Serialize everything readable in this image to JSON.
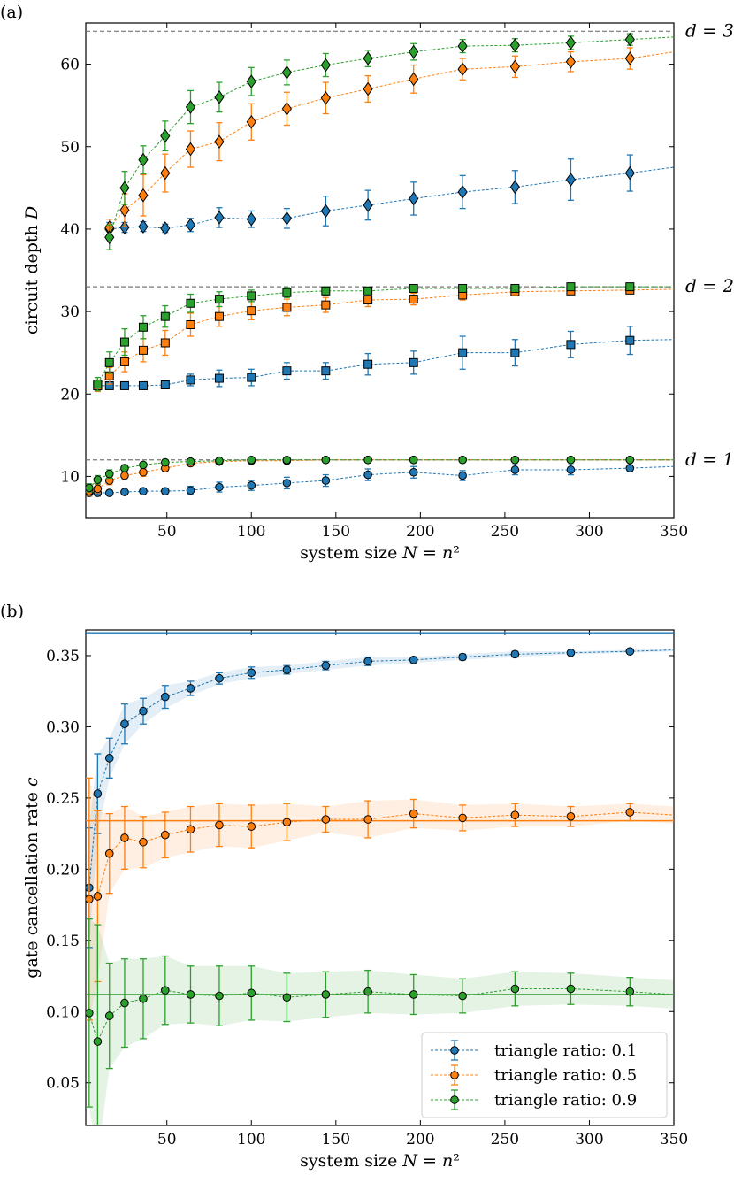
{
  "chart_data": [
    {
      "panel": "(a)",
      "type": "scatter",
      "xlabel": "system size N = n²",
      "ylabel": "circuit depth D",
      "xlim": [
        2,
        350
      ],
      "ylim": [
        5,
        65
      ],
      "xticks": [
        50,
        100,
        150,
        200,
        250,
        300,
        350
      ],
      "yticks": [
        10,
        20,
        30,
        40,
        50,
        60
      ],
      "grid": false,
      "reference_lines": [
        {
          "y": 64,
          "label": "d = 3"
        },
        {
          "y": 33,
          "label": "d = 2"
        },
        {
          "y": 12,
          "label": "d = 1"
        }
      ],
      "colors": {
        "0.1": "#1f77b4",
        "0.5": "#ff7f0e",
        "0.9": "#2ca02c"
      },
      "series": [
        {
          "group": "d = 1",
          "ratio": "0.1",
          "marker": "circle",
          "x": [
            4,
            9,
            16,
            25,
            36,
            49,
            64,
            81,
            100,
            121,
            144,
            169,
            196,
            225,
            256,
            289,
            324
          ],
          "y": [
            8.0,
            8.0,
            8.0,
            8.1,
            8.2,
            8.2,
            8.3,
            8.7,
            8.9,
            9.2,
            9.5,
            10.2,
            10.5,
            10.1,
            10.8,
            10.8,
            11.0
          ],
          "err": [
            0.4,
            0.4,
            0.3,
            0.3,
            0.3,
            0.3,
            0.5,
            0.6,
            0.6,
            0.7,
            0.7,
            0.7,
            0.7,
            0.6,
            0.6,
            0.6,
            0.4
          ],
          "fit_end": 11.2
        },
        {
          "group": "d = 1",
          "ratio": "0.5",
          "marker": "circle",
          "x": [
            4,
            9,
            16,
            25,
            36,
            49,
            64,
            81,
            100,
            121,
            144,
            169,
            196,
            225,
            256,
            289,
            324
          ],
          "y": [
            8.2,
            8.5,
            9.5,
            10.1,
            10.5,
            11.0,
            11.6,
            11.8,
            11.9,
            11.9,
            12.0,
            12.0,
            12.0,
            12.0,
            12.0,
            12.0,
            12.0
          ],
          "err": [
            0.5,
            0.5,
            0.5,
            0.5,
            0.5,
            0.4,
            0.3,
            0.2,
            0.1,
            0.1,
            0.1,
            0.1,
            0.1,
            0.1,
            0.1,
            0.1,
            0.1
          ],
          "fit_end": 12.0
        },
        {
          "group": "d = 1",
          "ratio": "0.9",
          "marker": "circle",
          "x": [
            4,
            9,
            16,
            25,
            36,
            49,
            64,
            81,
            100,
            121,
            144,
            169,
            196,
            225,
            256,
            289,
            324
          ],
          "y": [
            8.6,
            9.6,
            10.3,
            11.0,
            11.4,
            11.7,
            11.8,
            11.9,
            12.0,
            12.0,
            12.0,
            12.0,
            12.0,
            12.0,
            12.0,
            12.0,
            12.0
          ],
          "err": [
            0.5,
            0.5,
            0.5,
            0.4,
            0.3,
            0.2,
            0.2,
            0.1,
            0.1,
            0.1,
            0.1,
            0.1,
            0.1,
            0.1,
            0.1,
            0.1,
            0.1
          ],
          "fit_end": 12.0
        },
        {
          "group": "d = 2",
          "ratio": "0.1",
          "marker": "square",
          "x": [
            9,
            16,
            25,
            36,
            49,
            64,
            81,
            100,
            121,
            144,
            169,
            196,
            225,
            256,
            289,
            324
          ],
          "y": [
            21.0,
            21.0,
            21.0,
            21.0,
            21.1,
            21.7,
            21.9,
            22.0,
            22.8,
            22.8,
            23.6,
            23.8,
            25.0,
            25.0,
            26.0,
            26.5
          ],
          "err": [
            0.3,
            0.3,
            0.3,
            0.3,
            0.3,
            0.7,
            1.0,
            1.0,
            1.0,
            1.0,
            1.3,
            1.4,
            2.0,
            1.6,
            1.6,
            1.7
          ],
          "fit_end": 26.6
        },
        {
          "group": "d = 2",
          "ratio": "0.5",
          "marker": "square",
          "x": [
            9,
            16,
            25,
            36,
            49,
            64,
            81,
            100,
            121,
            144,
            169,
            196,
            225,
            256,
            289,
            324
          ],
          "y": [
            21.0,
            22.2,
            23.9,
            25.3,
            26.2,
            28.4,
            29.4,
            30.1,
            30.5,
            30.8,
            31.4,
            31.5,
            32.0,
            32.4,
            32.5,
            32.6
          ],
          "err": [
            0.7,
            1.0,
            1.2,
            1.4,
            1.5,
            1.4,
            1.2,
            1.1,
            1.0,
            0.9,
            0.8,
            0.7,
            0.6,
            0.5,
            0.4,
            0.3
          ],
          "fit_end": 32.7
        },
        {
          "group": "d = 2",
          "ratio": "0.9",
          "marker": "square",
          "x": [
            9,
            16,
            25,
            36,
            49,
            64,
            81,
            100,
            121,
            144,
            169,
            196,
            225,
            256,
            289,
            324
          ],
          "y": [
            21.2,
            23.8,
            26.3,
            28.1,
            29.4,
            31.0,
            31.5,
            31.9,
            32.3,
            32.5,
            32.5,
            32.8,
            32.8,
            32.8,
            33.0,
            33.0
          ],
          "err": [
            0.8,
            1.3,
            1.6,
            1.4,
            1.3,
            1.1,
            0.9,
            0.7,
            0.6,
            0.5,
            0.4,
            0.3,
            0.3,
            0.2,
            0.2,
            0.1
          ],
          "fit_end": 33.0
        },
        {
          "group": "d = 3",
          "ratio": "0.1",
          "marker": "diamond",
          "x": [
            16,
            25,
            36,
            49,
            64,
            81,
            100,
            121,
            144,
            169,
            196,
            225,
            256,
            289,
            324
          ],
          "y": [
            40.0,
            40.2,
            40.3,
            40.1,
            40.5,
            41.4,
            41.2,
            41.3,
            42.2,
            42.9,
            43.7,
            44.5,
            45.1,
            46.0,
            46.8
          ],
          "err": [
            0.8,
            0.6,
            0.6,
            0.5,
            0.8,
            1.2,
            1.0,
            1.2,
            1.8,
            1.8,
            2.0,
            2.0,
            2.0,
            2.5,
            2.2
          ],
          "fit_end": 47.5
        },
        {
          "group": "d = 3",
          "ratio": "0.5",
          "marker": "diamond",
          "x": [
            16,
            25,
            36,
            49,
            64,
            81,
            100,
            121,
            144,
            169,
            196,
            225,
            256,
            289,
            324
          ],
          "y": [
            40.2,
            42.3,
            44.1,
            46.8,
            49.7,
            50.6,
            53.0,
            54.6,
            55.9,
            57.0,
            58.2,
            59.4,
            59.7,
            60.3,
            60.7
          ],
          "err": [
            1.0,
            2.0,
            2.5,
            2.3,
            2.2,
            2.3,
            2.2,
            2.0,
            1.9,
            1.6,
            1.7,
            1.3,
            1.3,
            1.2,
            1.3
          ],
          "fit_end": 61.5
        },
        {
          "group": "d = 3",
          "ratio": "0.9",
          "marker": "diamond",
          "x": [
            16,
            25,
            36,
            49,
            64,
            81,
            100,
            121,
            144,
            169,
            196,
            225,
            256,
            289,
            324
          ],
          "y": [
            39.0,
            45.0,
            48.4,
            51.3,
            54.8,
            56.0,
            57.9,
            59.0,
            59.9,
            60.7,
            61.5,
            62.2,
            62.3,
            62.6,
            63.0
          ],
          "err": [
            1.5,
            2.0,
            1.7,
            1.8,
            2.0,
            1.8,
            1.7,
            1.5,
            1.4,
            1.0,
            1.0,
            0.8,
            0.8,
            0.8,
            0.7
          ],
          "fit_end": 63.3
        }
      ]
    },
    {
      "panel": "(b)",
      "type": "scatter",
      "xlabel": "system size N = n²",
      "ylabel": "gate cancellation rate c",
      "xlim": [
        2,
        350
      ],
      "ylim": [
        0.02,
        0.368
      ],
      "xticks": [
        50,
        100,
        150,
        200,
        250,
        300,
        350
      ],
      "yticks": [
        0.05,
        0.1,
        0.15,
        0.2,
        0.25,
        0.3,
        0.35
      ],
      "ytick_labels": [
        "0.05",
        "0.10",
        "0.15",
        "0.20",
        "0.25",
        "0.30",
        "0.35"
      ],
      "grid": false,
      "legend_position": "bottom-right",
      "series": [
        {
          "name": "triangle ratio: 0.1",
          "color": "#1f77b4",
          "x": [
            4,
            9,
            16,
            25,
            36,
            49,
            64,
            81,
            100,
            121,
            144,
            169,
            196,
            225,
            256,
            289,
            324
          ],
          "y": [
            0.187,
            0.253,
            0.278,
            0.302,
            0.311,
            0.321,
            0.327,
            0.334,
            0.338,
            0.34,
            0.343,
            0.346,
            0.347,
            0.349,
            0.351,
            0.352,
            0.353
          ],
          "err": [
            0.042,
            0.028,
            0.014,
            0.014,
            0.009,
            0.008,
            0.005,
            0.004,
            0.004,
            0.003,
            0.003,
            0.003,
            0.002,
            0.002,
            0.002,
            0.001,
            0.001
          ],
          "asymptote": 0.366,
          "fit_end": 0.354
        },
        {
          "name": "triangle ratio: 0.5",
          "color": "#ff7f0e",
          "x": [
            4,
            9,
            16,
            25,
            36,
            49,
            64,
            81,
            100,
            121,
            144,
            169,
            196,
            225,
            256,
            289,
            324
          ],
          "y": [
            0.179,
            0.181,
            0.211,
            0.222,
            0.219,
            0.224,
            0.228,
            0.231,
            0.23,
            0.233,
            0.235,
            0.235,
            0.239,
            0.236,
            0.238,
            0.237,
            0.24
          ],
          "err": [
            0.085,
            0.06,
            0.028,
            0.022,
            0.018,
            0.016,
            0.016,
            0.015,
            0.015,
            0.013,
            0.009,
            0.013,
            0.01,
            0.009,
            0.008,
            0.007,
            0.006
          ],
          "asymptote": 0.234,
          "fit_end": 0.238
        },
        {
          "name": "triangle ratio: 0.9",
          "color": "#2ca02c",
          "x": [
            4,
            9,
            16,
            25,
            36,
            49,
            64,
            81,
            100,
            121,
            144,
            169,
            196,
            225,
            256,
            289,
            324
          ],
          "y": [
            0.099,
            0.079,
            0.097,
            0.106,
            0.109,
            0.115,
            0.112,
            0.111,
            0.113,
            0.11,
            0.112,
            0.114,
            0.112,
            0.111,
            0.116,
            0.116,
            0.114
          ],
          "err": [
            0.066,
            0.082,
            0.037,
            0.031,
            0.028,
            0.024,
            0.02,
            0.021,
            0.019,
            0.017,
            0.016,
            0.015,
            0.014,
            0.012,
            0.012,
            0.011,
            0.01
          ],
          "asymptote": 0.112,
          "fit_end": 0.112
        }
      ]
    }
  ],
  "labels": {
    "panel_a": "(a)",
    "panel_b": "(b)",
    "d3": "d = 3",
    "d2": "d = 2",
    "d1": "d = 1"
  }
}
